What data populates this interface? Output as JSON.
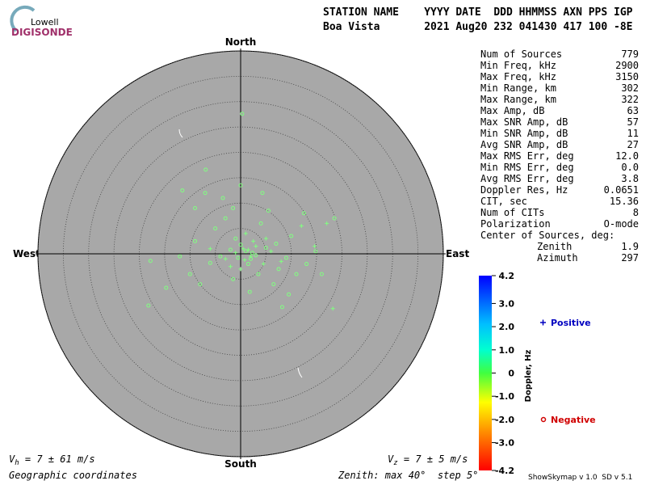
{
  "chart_data": {
    "type": "skymap",
    "logo": {
      "top": "Lowell",
      "bottom": "DIGISONDE"
    },
    "header": {
      "line1": "STATION NAME    YYYY DATE  DDD HHMMSS AXN PPS IGP",
      "line2": "Boa Vista       2021 Aug20 232 041430 417 100 -8E"
    },
    "directions": {
      "north": "North",
      "south": "South",
      "east": "East",
      "west": "West"
    },
    "rlim": [
      0,
      40
    ],
    "rings": [
      5,
      10,
      15,
      20,
      25,
      30,
      35,
      40
    ],
    "series": [
      {
        "name": "Positive",
        "marker": "+",
        "legend_color": "#0000c0",
        "color": "#80ff80",
        "x": [
          0.5,
          2,
          1.5,
          -1,
          3,
          0.8,
          14.6,
          18.2,
          12,
          4.5,
          -3,
          2.5,
          6,
          8,
          -6,
          1,
          17,
          0,
          5,
          -2
        ],
        "y": [
          1,
          -0.5,
          0.8,
          0.2,
          1.5,
          -1.2,
          1.5,
          -10.8,
          5.5,
          -2,
          -1,
          2.5,
          0.5,
          -1.5,
          1,
          4,
          6,
          -3,
          3,
          -2.5
        ]
      },
      {
        "name": "Negative",
        "marker": "o",
        "legend_color": "#d00000",
        "color": "#80ff80",
        "x": [
          0.3,
          -18.2,
          -6.9,
          18.5,
          -14.7,
          -17.8,
          8.2,
          14.8,
          -7,
          -3.5,
          0,
          4.3,
          -11.5,
          -9,
          12.5,
          -1,
          2,
          1,
          -2,
          3,
          5,
          -4,
          7,
          9,
          -6,
          3.5,
          -1.5,
          6.5,
          11,
          -9,
          -12,
          10,
          4,
          -5,
          1.5,
          0,
          2.3,
          -0.5,
          7.5,
          13,
          -8,
          -3,
          1.8,
          9.5,
          16,
          -10,
          5.5,
          -1.5
        ],
        "y": [
          27.6,
          -10.2,
          16.6,
          7,
          -6.7,
          -1.4,
          -10.5,
          0.5,
          12,
          11,
          13.5,
          12,
          12.5,
          9,
          8,
          3,
          -1,
          0.5,
          0.8,
          -0.3,
          1.2,
          -0.5,
          2,
          -0.8,
          -1.8,
          -4,
          -5,
          -6,
          -4,
          2.5,
          -0.5,
          3.5,
          6,
          5,
          -2,
          1.8,
          0.2,
          -0.8,
          -3,
          -2,
          -6,
          7,
          -7.5,
          -8,
          -4,
          -4,
          8.5,
          9
        ]
      }
    ],
    "stats": [
      [
        "Num of Sources",
        "779"
      ],
      [
        "Min Freq, kHz",
        "2900"
      ],
      [
        "Max Freq, kHz",
        "3150"
      ],
      [
        "Min Range, km",
        "302"
      ],
      [
        "Max Range, km",
        "322"
      ],
      [
        "Max Amp, dB",
        "63"
      ],
      [
        "Max SNR Amp, dB",
        "57"
      ],
      [
        "Min SNR Amp, dB",
        "11"
      ],
      [
        "Avg SNR Amp, dB",
        "27"
      ],
      [
        "Max RMS Err, deg",
        "12.0"
      ],
      [
        "Min RMS Err, deg",
        "0.0"
      ],
      [
        "Avg RMS Err, deg",
        "3.8"
      ],
      [
        "Doppler Res, Hz",
        "0.0651"
      ],
      [
        "CIT, sec",
        "15.36"
      ],
      [
        "Num of CITs",
        "8"
      ],
      [
        "Polarization",
        "O-mode"
      ]
    ],
    "center_title": "Center of Sources, deg:",
    "center": [
      [
        "Zenith",
        "1.9"
      ],
      [
        "Azimuth",
        "297"
      ]
    ],
    "colorbar": {
      "label": "Doppler, Hz",
      "clim": [
        -4.2,
        4.2
      ],
      "ticks": [
        4.2,
        {
          "value": 3,
          "label": "3.0"
        },
        {
          "value": 2,
          "label": "2.0"
        },
        {
          "value": 1,
          "label": "1.0"
        },
        0,
        {
          "value": -1,
          "label": "-1.0"
        },
        {
          "value": -2,
          "label": "-2.0"
        },
        {
          "value": -3,
          "label": "-3.0"
        },
        -4.2
      ]
    },
    "vh": {
      "symbol": "V",
      "sub": "h",
      "text": " = 7 ± 61 m/s"
    },
    "vz": {
      "symbol": "V",
      "sub": "z",
      "text": " = 7 ± 5 m/s"
    },
    "coordinates": "Geographic coordinates",
    "zenith_note": "Zenith: max 40°  step 5°",
    "version": "ShowSkymap v 1.0  SD v 5.1"
  }
}
